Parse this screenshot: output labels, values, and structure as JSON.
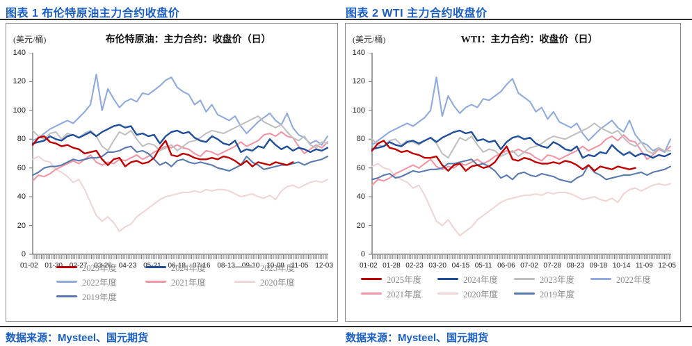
{
  "page": {
    "figure1_caption": "图表 1 布伦特原油主力合约收盘价",
    "figure2_caption": "图表 2 WTI 主力合约收盘价",
    "source_label": "数据来源：Mysteel、国元期货"
  },
  "colors": {
    "title_blue": "#1a5fc4",
    "axis_gray": "#808080",
    "legend_text": "#8c8c8c",
    "panel_border": "#8a8a8a"
  },
  "chart_data": [
    {
      "type": "line",
      "unit": "(美元/桶)",
      "title": "布伦特原油：主力合约：收盘价（日）",
      "ylim": [
        0,
        140
      ],
      "yticks": [
        0,
        20,
        40,
        60,
        80,
        100,
        120,
        140
      ],
      "grid": false,
      "legend_position": "bottom",
      "xticklabels": [
        "01-02",
        "01-30",
        "02-27",
        "03-26",
        "04-23",
        "05-21",
        "06-18",
        "07-16",
        "08-13",
        "09-10",
        "10-08",
        "11-05",
        "12-03"
      ],
      "series": [
        {
          "name": "2025年度",
          "color": "#c00000",
          "values": [
            76,
            81,
            82,
            78,
            77,
            75,
            76,
            74,
            73,
            70,
            71,
            72,
            66,
            62,
            66,
            67,
            61,
            64,
            65,
            63,
            64,
            67,
            74,
            79,
            69,
            68,
            70,
            69,
            67,
            66,
            66,
            67,
            66,
            68,
            67,
            65,
            62,
            65,
            61,
            64,
            63,
            62,
            64,
            63,
            62,
            64
          ]
        },
        {
          "name": "2024年度",
          "color": "#1f4e9c",
          "values": [
            77,
            78,
            79,
            82,
            80,
            79,
            82,
            83,
            81,
            83,
            85,
            82,
            85,
            87,
            89,
            90,
            88,
            89,
            83,
            84,
            82,
            83,
            77,
            82,
            85,
            86,
            84,
            85,
            81,
            79,
            78,
            82,
            80,
            77,
            76,
            79,
            71,
            73,
            72,
            75,
            74,
            80,
            76,
            73,
            75,
            72,
            74,
            73,
            71,
            73,
            72,
            74
          ]
        },
        {
          "name": "2023年度",
          "color": "#c0c0c0",
          "values": [
            86,
            82,
            80,
            84,
            85,
            80,
            84,
            83,
            81,
            84,
            86,
            82,
            75,
            72,
            79,
            85,
            83,
            86,
            80,
            75,
            77,
            76,
            72,
            74,
            76,
            72,
            75,
            78,
            79,
            81,
            84,
            86,
            85,
            84,
            86,
            88,
            90,
            92,
            94,
            96,
            92,
            90,
            88,
            90,
            85,
            81,
            79,
            82,
            76,
            74,
            78,
            77
          ]
        },
        {
          "name": "2022年度",
          "color": "#8faadc",
          "values": [
            79,
            81,
            84,
            87,
            89,
            91,
            93,
            91,
            95,
            99,
            104,
            125,
            100,
            115,
            108,
            102,
            106,
            108,
            106,
            112,
            111,
            114,
            117,
            121,
            123,
            116,
            113,
            111,
            104,
            107,
            99,
            104,
            97,
            95,
            93,
            96,
            89,
            84,
            88,
            92,
            95,
            98,
            93,
            90,
            98,
            88,
            83,
            81,
            77,
            79,
            76,
            82
          ]
        },
        {
          "name": "2021年度",
          "color": "#f195a4",
          "values": [
            51,
            55,
            54,
            56,
            59,
            61,
            63,
            65,
            63,
            66,
            69,
            64,
            62,
            64,
            63,
            66,
            65,
            67,
            69,
            66,
            68,
            71,
            73,
            75,
            74,
            76,
            74,
            73,
            70,
            68,
            72,
            71,
            69,
            71,
            73,
            75,
            78,
            75,
            77,
            79,
            83,
            84,
            82,
            85,
            82,
            81,
            75,
            70,
            73,
            76,
            74,
            78
          ]
        },
        {
          "name": "2020年度",
          "color": "#f0d4d6",
          "values": [
            66,
            68,
            65,
            64,
            59,
            57,
            54,
            50,
            52,
            45,
            36,
            27,
            23,
            26,
            22,
            16,
            19,
            21,
            26,
            29,
            32,
            35,
            38,
            40,
            41,
            42,
            43,
            43,
            44,
            43,
            45,
            44,
            45,
            45,
            44,
            42,
            40,
            41,
            42,
            40,
            39,
            41,
            38,
            44,
            47,
            48,
            46,
            48,
            50,
            51,
            50,
            52
          ]
        },
        {
          "name": "2019年度",
          "color": "#5878b0",
          "values": [
            55,
            57,
            60,
            61,
            61,
            62,
            64,
            66,
            65,
            66,
            67,
            67,
            68,
            71,
            71,
            72,
            74,
            75,
            71,
            72,
            70,
            66,
            62,
            64,
            61,
            65,
            66,
            64,
            63,
            64,
            63,
            62,
            60,
            59,
            58,
            60,
            62,
            68,
            64,
            62,
            59,
            60,
            61,
            62,
            62,
            63,
            64,
            62,
            64,
            65,
            66,
            68
          ]
        }
      ]
    },
    {
      "type": "line",
      "unit": "(美元/桶)",
      "title": "WTI：主力合约：收盘价（日）",
      "ylim": [
        0,
        140
      ],
      "yticks": [
        0,
        20,
        40,
        60,
        80,
        100,
        120,
        140
      ],
      "grid": false,
      "legend_position": "bottom",
      "xticklabels": [
        "01-02",
        "01-28",
        "02-23",
        "03-20",
        "04-15",
        "05-11",
        "06-06",
        "07-02",
        "07-28",
        "08-23",
        "09-18",
        "10-14",
        "11-09",
        "12-05"
      ],
      "series": [
        {
          "name": "2025年度",
          "color": "#c00000",
          "values": [
            72,
            77,
            79,
            74,
            73,
            71,
            72,
            70,
            69,
            67,
            67,
            68,
            62,
            58,
            62,
            63,
            58,
            61,
            62,
            60,
            61,
            64,
            70,
            75,
            66,
            65,
            67,
            66,
            64,
            63,
            63,
            64,
            63,
            65,
            64,
            62,
            59,
            62,
            58,
            61,
            60,
            59,
            61,
            60,
            59,
            60
          ]
        },
        {
          "name": "2024年度",
          "color": "#1f4e9c",
          "values": [
            73,
            74,
            75,
            78,
            76,
            75,
            78,
            79,
            77,
            79,
            81,
            78,
            81,
            83,
            85,
            86,
            84,
            85,
            79,
            80,
            78,
            79,
            73,
            78,
            81,
            82,
            80,
            81,
            77,
            75,
            74,
            78,
            76,
            73,
            72,
            75,
            67,
            69,
            68,
            71,
            70,
            76,
            72,
            69,
            71,
            68,
            70,
            69,
            67,
            69,
            68,
            70
          ]
        },
        {
          "name": "2023年度",
          "color": "#c0c0c0",
          "values": [
            80,
            76,
            75,
            79,
            80,
            76,
            79,
            78,
            76,
            79,
            81,
            77,
            70,
            67,
            74,
            81,
            79,
            82,
            76,
            71,
            73,
            72,
            68,
            70,
            72,
            68,
            71,
            74,
            75,
            77,
            80,
            82,
            81,
            80,
            82,
            84,
            86,
            88,
            91,
            88,
            86,
            84,
            86,
            81,
            77,
            75,
            78,
            72,
            70,
            74,
            72,
            72
          ]
        },
        {
          "name": "2022年度",
          "color": "#8faadc",
          "values": [
            76,
            79,
            82,
            85,
            87,
            89,
            91,
            89,
            92,
            95,
            100,
            123,
            96,
            110,
            103,
            98,
            102,
            104,
            102,
            108,
            107,
            110,
            113,
            118,
            122,
            112,
            109,
            106,
            99,
            102,
            94,
            99,
            92,
            90,
            88,
            91,
            84,
            79,
            83,
            87,
            90,
            93,
            88,
            85,
            93,
            83,
            78,
            76,
            72,
            74,
            71,
            80
          ]
        },
        {
          "name": "2021年度",
          "color": "#f195a4",
          "values": [
            48,
            52,
            51,
            53,
            56,
            58,
            60,
            62,
            60,
            63,
            66,
            61,
            59,
            61,
            60,
            63,
            62,
            64,
            66,
            63,
            65,
            68,
            70,
            72,
            71,
            73,
            71,
            70,
            67,
            65,
            69,
            68,
            66,
            68,
            70,
            72,
            75,
            72,
            74,
            76,
            80,
            82,
            79,
            83,
            79,
            78,
            72,
            66,
            69,
            73,
            71,
            75
          ]
        },
        {
          "name": "2020年度",
          "color": "#f0d4d6",
          "values": [
            61,
            63,
            60,
            59,
            54,
            52,
            50,
            46,
            48,
            41,
            32,
            23,
            20,
            24,
            18,
            13,
            16,
            19,
            24,
            27,
            30,
            33,
            36,
            38,
            39,
            40,
            41,
            41,
            42,
            41,
            43,
            42,
            43,
            43,
            42,
            40,
            38,
            39,
            40,
            38,
            37,
            39,
            36,
            42,
            45,
            46,
            44,
            46,
            48,
            49,
            48,
            49
          ]
        },
        {
          "name": "2019年度",
          "color": "#5878b0",
          "values": [
            52,
            53,
            55,
            56,
            53,
            54,
            56,
            58,
            57,
            58,
            59,
            59,
            60,
            63,
            63,
            64,
            65,
            66,
            62,
            63,
            61,
            58,
            53,
            55,
            52,
            56,
            57,
            55,
            54,
            56,
            55,
            54,
            52,
            51,
            50,
            53,
            55,
            62,
            57,
            55,
            52,
            53,
            54,
            55,
            55,
            56,
            57,
            55,
            57,
            58,
            59,
            61
          ]
        }
      ]
    }
  ]
}
